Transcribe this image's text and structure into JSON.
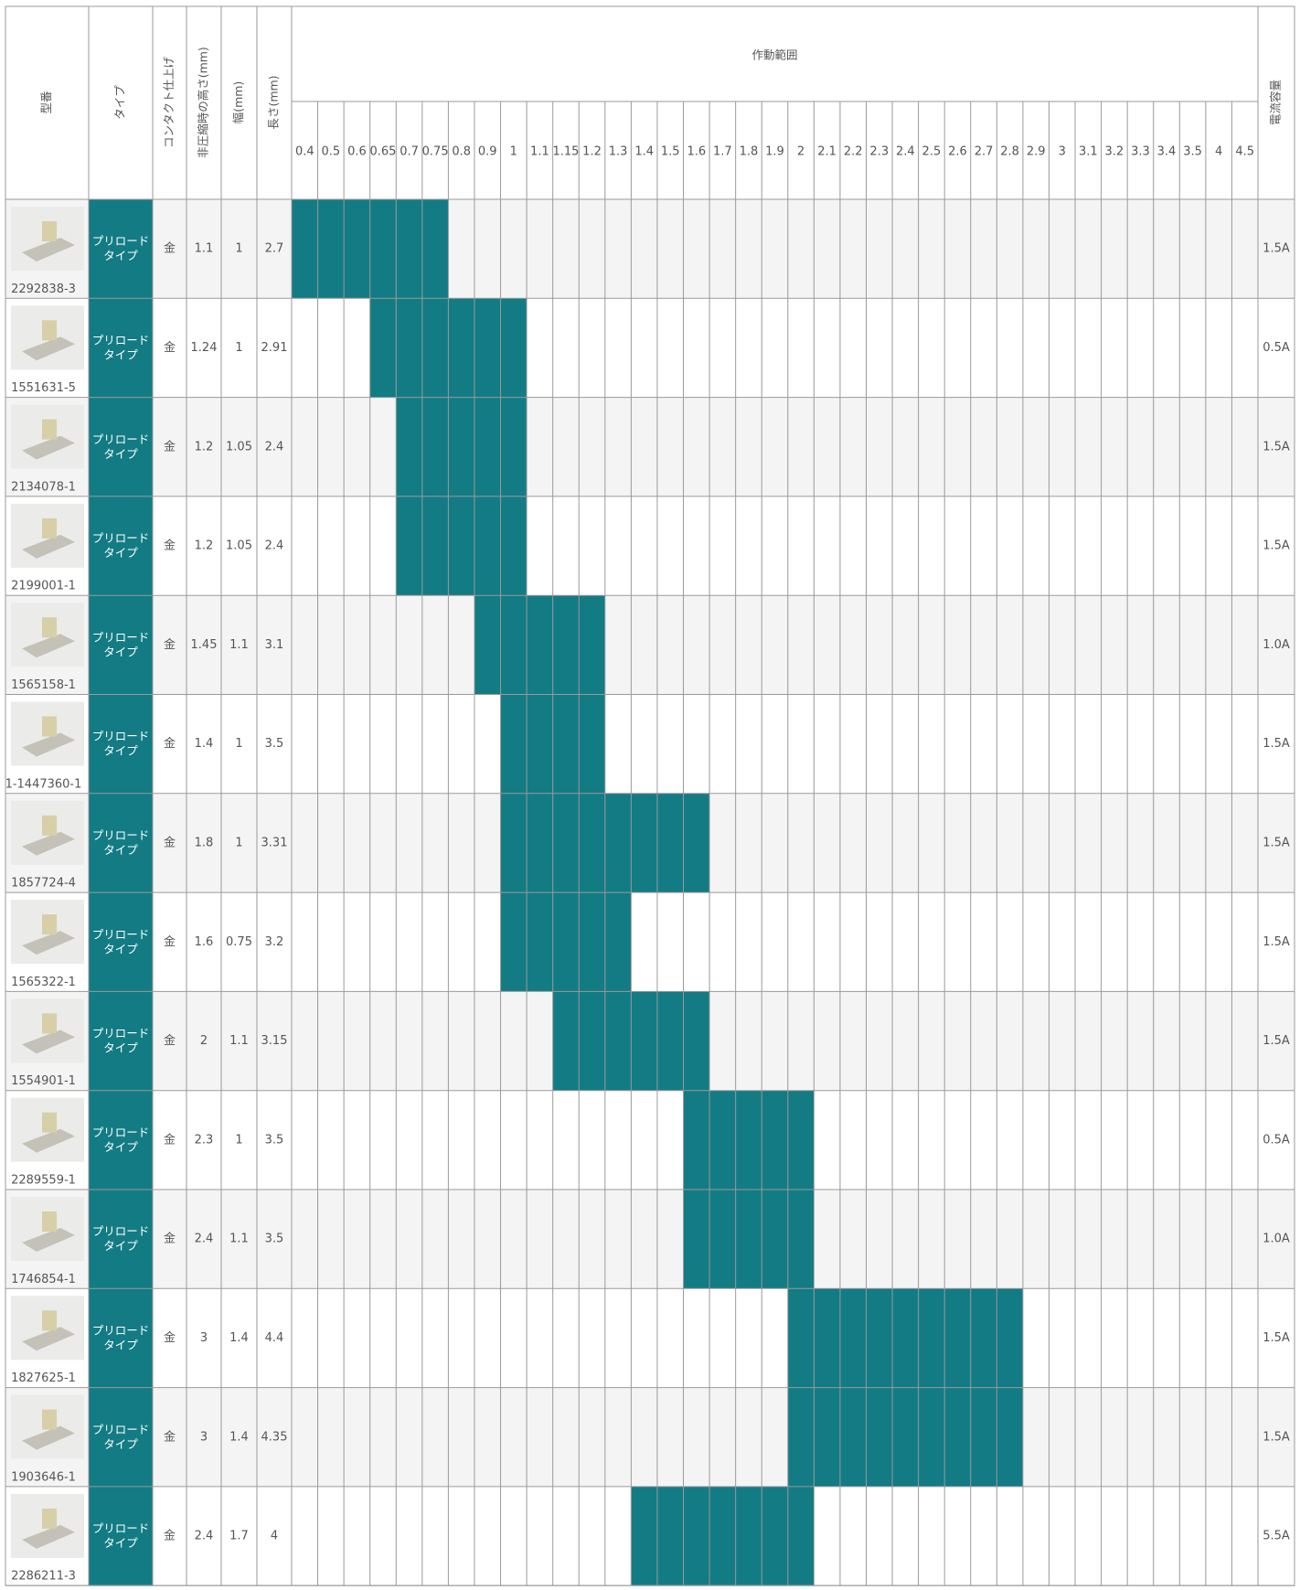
{
  "header": {
    "part_number": "型番",
    "type": "タイプ",
    "finish": "コンタクト仕上げ",
    "height": "非圧縮時の高さ(mm)",
    "width": "幅(mm)",
    "length": "長さ(mm)",
    "range": "作動範囲",
    "current": "電流容量"
  },
  "range_columns": [
    0.4,
    0.5,
    0.6,
    0.65,
    0.7,
    0.75,
    0.8,
    0.9,
    1,
    1.1,
    1.15,
    1.2,
    1.3,
    1.4,
    1.5,
    1.6,
    1.7,
    1.8,
    1.9,
    2,
    2.1,
    2.2,
    2.3,
    2.4,
    2.5,
    2.6,
    2.7,
    2.8,
    2.9,
    3,
    3.1,
    3.2,
    3.3,
    3.4,
    3.5,
    4,
    4.5
  ],
  "rows": [
    {
      "part_number": "2292838-3",
      "type": "プリロード\nタイプ",
      "finish": "金",
      "height": 1.1,
      "width": 1,
      "length": 2.7,
      "range": [
        0.4,
        0.75
      ],
      "current": "1.5A"
    },
    {
      "part_number": "1551631-5",
      "type": "プリロード\nタイプ",
      "finish": "金",
      "height": 1.24,
      "width": 1,
      "length": 2.91,
      "range": [
        0.65,
        1
      ],
      "current": "0.5A"
    },
    {
      "part_number": "2134078-1",
      "type": "プリロード\nタイプ",
      "finish": "金",
      "height": 1.2,
      "width": 1.05,
      "length": 2.4,
      "range": [
        0.7,
        1
      ],
      "current": "1.5A"
    },
    {
      "part_number": "2199001-1",
      "type": "プリロード\nタイプ",
      "finish": "金",
      "height": 1.2,
      "width": 1.05,
      "length": 2.4,
      "range": [
        0.7,
        1
      ],
      "current": "1.5A"
    },
    {
      "part_number": "1565158-1",
      "type": "プリロード\nタイプ",
      "finish": "金",
      "height": 1.45,
      "width": 1.1,
      "length": 3.1,
      "range": [
        0.9,
        1.2
      ],
      "current": "1.0A"
    },
    {
      "part_number": "1-1447360-1",
      "type": "プリロード\nタイプ",
      "finish": "金",
      "height": 1.4,
      "width": 1,
      "length": 3.5,
      "range": [
        1,
        1.2
      ],
      "current": "1.5A"
    },
    {
      "part_number": "1857724-4",
      "type": "プリロード\nタイプ",
      "finish": "金",
      "height": 1.8,
      "width": 1,
      "length": 3.31,
      "range": [
        1,
        1.6
      ],
      "current": "1.5A"
    },
    {
      "part_number": "1565322-1",
      "type": "プリロード\nタイプ",
      "finish": "金",
      "height": 1.6,
      "width": 0.75,
      "length": 3.2,
      "range": [
        1,
        1.3
      ],
      "current": "1.5A"
    },
    {
      "part_number": "1554901-1",
      "type": "プリロード\nタイプ",
      "finish": "金",
      "height": 2,
      "width": 1.1,
      "length": 3.15,
      "range": [
        1.15,
        1.6
      ],
      "current": "1.5A"
    },
    {
      "part_number": "2289559-1",
      "type": "プリロード\nタイプ",
      "finish": "金",
      "height": 2.3,
      "width": 1,
      "length": 3.5,
      "range": [
        1.6,
        2
      ],
      "current": "0.5A"
    },
    {
      "part_number": "1746854-1",
      "type": "プリロード\nタイプ",
      "finish": "金",
      "height": 2.4,
      "width": 1.1,
      "length": 3.5,
      "range": [
        1.6,
        2
      ],
      "current": "1.0A"
    },
    {
      "part_number": "1827625-1",
      "type": "プリロード\nタイプ",
      "finish": "金",
      "height": 3,
      "width": 1.4,
      "length": 4.4,
      "range": [
        2,
        2.8
      ],
      "current": "1.5A"
    },
    {
      "part_number": "1903646-1",
      "type": "プリロード\nタイプ",
      "finish": "金",
      "height": 3,
      "width": 1.4,
      "length": 4.35,
      "range": [
        2,
        2.8
      ],
      "current": "1.5A"
    },
    {
      "part_number": "2286211-3",
      "type": "プリロード\nタイプ",
      "finish": "金",
      "height": 2.4,
      "width": 1.7,
      "length": 4,
      "range": [
        1.4,
        2
      ],
      "current": "5.5A"
    }
  ]
}
